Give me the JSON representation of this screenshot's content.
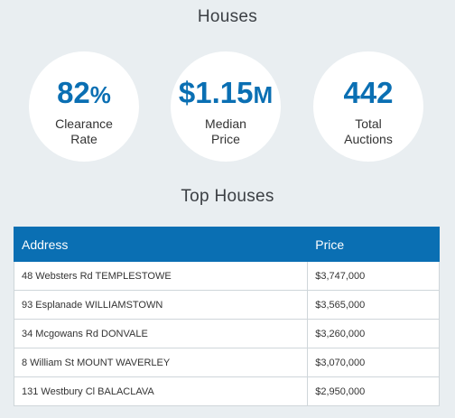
{
  "houses": {
    "title": "Houses",
    "stats": [
      {
        "value": "82",
        "unit": "%",
        "label_line1": "Clearance",
        "label_line2": "Rate"
      },
      {
        "value": "$1.15",
        "unit": "M",
        "label_line1": "Median",
        "label_line2": "Price"
      },
      {
        "value": "442",
        "unit": "",
        "label_line1": "Total",
        "label_line2": "Auctions"
      }
    ]
  },
  "top_houses": {
    "title": "Top Houses",
    "columns": {
      "address": "Address",
      "price": "Price"
    },
    "rows": [
      {
        "address": "48 Websters Rd TEMPLESTOWE",
        "price": "$3,747,000"
      },
      {
        "address": "93 Esplanade WILLIAMSTOWN",
        "price": "$3,565,000"
      },
      {
        "address": "34 Mcgowans Rd DONVALE",
        "price": "$3,260,000"
      },
      {
        "address": "8 William St MOUNT WAVERLEY",
        "price": "$3,070,000"
      },
      {
        "address": "131 Westbury Cl BALACLAVA",
        "price": "$2,950,000"
      }
    ]
  },
  "colors": {
    "accent": "#0a6fb3",
    "background": "#e9eef1"
  }
}
